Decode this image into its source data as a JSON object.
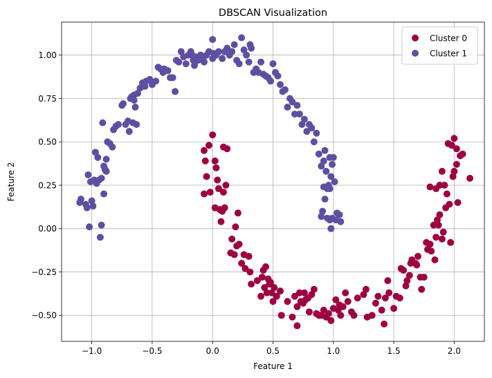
{
  "chart_data": {
    "type": "scatter",
    "title": "DBSCAN Visualization",
    "xlabel": "Feature 1",
    "ylabel": "Feature 2",
    "xlim": [
      -1.25,
      2.25
    ],
    "ylim": [
      -0.65,
      1.19
    ],
    "xticks": [
      -1.0,
      -0.5,
      0.0,
      0.5,
      1.0,
      1.5,
      2.0
    ],
    "xtick_labels": [
      "−1.0",
      "−0.5",
      "0.0",
      "0.5",
      "1.0",
      "1.5",
      "2.0"
    ],
    "yticks": [
      -0.5,
      -0.25,
      0.0,
      0.25,
      0.5,
      0.75,
      1.0
    ],
    "ytick_labels": [
      "−0.50",
      "−0.25",
      "0.00",
      "0.25",
      "0.50",
      "0.75",
      "1.00"
    ],
    "grid": true,
    "legend_position": "top-right",
    "series": [
      {
        "name": "Cluster 0",
        "color": "#9e0142",
        "points": [
          [
            0.0,
            0.54
          ],
          [
            -0.03,
            0.48
          ],
          [
            -0.07,
            0.45
          ],
          [
            -0.06,
            0.39
          ],
          [
            0.02,
            0.39
          ],
          [
            0.03,
            0.35
          ],
          [
            -0.05,
            0.3
          ],
          [
            0.04,
            0.28
          ],
          [
            0.09,
            0.47
          ],
          [
            0.12,
            0.46
          ],
          [
            0.05,
            0.23
          ],
          [
            0.09,
            0.21
          ],
          [
            0.11,
            0.25
          ],
          [
            -0.07,
            0.2
          ],
          [
            -0.02,
            0.21
          ],
          [
            0.02,
            0.12
          ],
          [
            0.06,
            0.11
          ],
          [
            0.08,
            0.1
          ],
          [
            0.1,
            0.12
          ],
          [
            0.07,
            0.04
          ],
          [
            0.21,
            0.09
          ],
          [
            0.19,
            0.01
          ],
          [
            0.16,
            -0.06
          ],
          [
            0.15,
            -0.14
          ],
          [
            0.2,
            -0.1
          ],
          [
            0.22,
            -0.09
          ],
          [
            0.18,
            -0.15
          ],
          [
            0.26,
            -0.15
          ],
          [
            0.24,
            -0.2
          ],
          [
            0.3,
            -0.16
          ],
          [
            0.27,
            -0.23
          ],
          [
            0.31,
            -0.25
          ],
          [
            0.32,
            -0.32
          ],
          [
            0.37,
            -0.3
          ],
          [
            0.41,
            -0.28
          ],
          [
            0.42,
            -0.24
          ],
          [
            0.44,
            -0.22
          ],
          [
            0.46,
            -0.29
          ],
          [
            0.43,
            -0.34
          ],
          [
            0.47,
            -0.32
          ],
          [
            0.4,
            -0.39
          ],
          [
            0.45,
            -0.37
          ],
          [
            0.49,
            -0.37
          ],
          [
            0.51,
            -0.34
          ],
          [
            0.48,
            -0.31
          ],
          [
            0.5,
            -0.42
          ],
          [
            0.53,
            -0.39
          ],
          [
            0.56,
            -0.36
          ],
          [
            0.57,
            -0.5
          ],
          [
            0.62,
            -0.42
          ],
          [
            0.66,
            -0.51
          ],
          [
            0.68,
            -0.39
          ],
          [
            0.7,
            -0.45
          ],
          [
            0.72,
            -0.37
          ],
          [
            0.73,
            -0.42
          ],
          [
            0.75,
            -0.43
          ],
          [
            0.76,
            -0.37
          ],
          [
            0.77,
            -0.41
          ],
          [
            0.79,
            -0.4
          ],
          [
            0.8,
            -0.48
          ],
          [
            0.82,
            -0.38
          ],
          [
            0.84,
            -0.35
          ],
          [
            0.7,
            -0.56
          ],
          [
            0.86,
            -0.49
          ],
          [
            0.88,
            -0.5
          ],
          [
            0.9,
            -0.5
          ],
          [
            0.92,
            -0.47
          ],
          [
            0.94,
            -0.51
          ],
          [
            0.96,
            -0.49
          ],
          [
            0.98,
            -0.53
          ],
          [
            1.0,
            -0.46
          ],
          [
            1.02,
            -0.41
          ],
          [
            1.04,
            -0.47
          ],
          [
            1.05,
            -0.44
          ],
          [
            1.06,
            -0.5
          ],
          [
            1.08,
            -0.45
          ],
          [
            1.1,
            -0.37
          ],
          [
            1.12,
            -0.42
          ],
          [
            1.15,
            -0.48
          ],
          [
            1.17,
            -0.5
          ],
          [
            1.2,
            -0.4
          ],
          [
            1.25,
            -0.38
          ],
          [
            1.27,
            -0.35
          ],
          [
            1.28,
            -0.51
          ],
          [
            1.32,
            -0.5
          ],
          [
            1.35,
            -0.43
          ],
          [
            1.37,
            -0.39
          ],
          [
            1.4,
            -0.47
          ],
          [
            1.42,
            -0.55
          ],
          [
            1.43,
            -0.4
          ],
          [
            1.45,
            -0.3
          ],
          [
            1.46,
            -0.37
          ],
          [
            1.5,
            -0.46
          ],
          [
            1.52,
            -0.39
          ],
          [
            1.55,
            -0.4
          ],
          [
            1.56,
            -0.23
          ],
          [
            1.58,
            -0.24
          ],
          [
            1.61,
            -0.3
          ],
          [
            1.63,
            -0.27
          ],
          [
            1.65,
            -0.18
          ],
          [
            1.68,
            -0.2
          ],
          [
            1.7,
            -0.16
          ],
          [
            1.72,
            -0.28
          ],
          [
            1.73,
            -0.35
          ],
          [
            1.75,
            -0.28
          ],
          [
            1.77,
            -0.08
          ],
          [
            1.78,
            -0.12
          ],
          [
            1.8,
            -0.09
          ],
          [
            1.81,
            -0.13
          ],
          [
            1.83,
            0.02
          ],
          [
            1.84,
            -0.18
          ],
          [
            1.85,
            -0.05
          ],
          [
            1.86,
            0.05
          ],
          [
            1.88,
            0.08
          ],
          [
            1.9,
            -0.06
          ],
          [
            1.91,
            -0.02
          ],
          [
            1.93,
            0.12
          ],
          [
            1.94,
            0.2
          ],
          [
            1.96,
            0.14
          ],
          [
            1.97,
            -0.08
          ],
          [
            1.99,
            0.3
          ],
          [
            2.0,
            0.33
          ],
          [
            2.02,
            0.37
          ],
          [
            2.05,
            0.42
          ],
          [
            2.07,
            0.43
          ],
          [
            2.13,
            0.29
          ],
          [
            1.95,
            0.49
          ],
          [
            1.98,
            0.48
          ],
          [
            2.0,
            0.52
          ],
          [
            2.02,
            0.46
          ],
          [
            1.9,
            0.33
          ],
          [
            1.88,
            0.25
          ],
          [
            1.85,
            0.23
          ],
          [
            1.8,
            0.24
          ],
          [
            1.92,
            0.25
          ],
          [
            1.6,
            -0.33
          ],
          [
            1.64,
            -0.2
          ],
          [
            1.69,
            -0.21
          ],
          [
            2.03,
            0.15
          ],
          [
            1.87,
            0.02
          ]
        ]
      },
      {
        "name": "Cluster 1",
        "color": "#5e4fa2",
        "points": [
          [
            -1.1,
            0.15
          ],
          [
            -1.09,
            0.17
          ],
          [
            -1.05,
            0.14
          ],
          [
            -1.04,
            0.12
          ],
          [
            -1.03,
            0.31
          ],
          [
            -1.02,
            0.01
          ],
          [
            -1.01,
            0.27
          ],
          [
            -1.0,
            0.16
          ],
          [
            -0.99,
            0.13
          ],
          [
            -0.98,
            0.28
          ],
          [
            -0.97,
            0.44
          ],
          [
            -0.96,
            0.26
          ],
          [
            -0.95,
            0.41
          ],
          [
            -0.94,
            0.28
          ],
          [
            -0.93,
            -0.05
          ],
          [
            -0.92,
            0.29
          ],
          [
            -0.92,
            0.02
          ],
          [
            -0.91,
            0.61
          ],
          [
            -0.9,
            0.36
          ],
          [
            -0.9,
            0.2
          ],
          [
            -0.89,
            0.34
          ],
          [
            -0.88,
            0.4
          ],
          [
            -0.87,
            0.5
          ],
          [
            -0.85,
            0.49
          ],
          [
            -0.83,
            0.47
          ],
          [
            -0.82,
            0.57
          ],
          [
            -0.8,
            0.59
          ],
          [
            -0.78,
            0.6
          ],
          [
            -0.75,
            0.71
          ],
          [
            -0.74,
            0.72
          ],
          [
            -0.72,
            0.6
          ],
          [
            -0.7,
            0.62
          ],
          [
            -0.69,
            0.56
          ],
          [
            -0.68,
            0.75
          ],
          [
            -0.67,
            0.76
          ],
          [
            -0.66,
            0.61
          ],
          [
            -0.65,
            0.74
          ],
          [
            -0.64,
            0.7
          ],
          [
            -0.63,
            0.6
          ],
          [
            -0.62,
            0.78
          ],
          [
            -0.6,
            0.81
          ],
          [
            -0.58,
            0.84
          ],
          [
            -0.56,
            0.82
          ],
          [
            -0.55,
            0.85
          ],
          [
            -0.52,
            0.86
          ],
          [
            -0.5,
            0.83
          ],
          [
            -0.47,
            0.85
          ],
          [
            -0.45,
            0.93
          ],
          [
            -0.43,
            0.92
          ],
          [
            -0.41,
            0.9
          ],
          [
            -0.4,
            0.92
          ],
          [
            -0.37,
            0.91
          ],
          [
            -0.35,
            0.87
          ],
          [
            -0.33,
            0.87
          ],
          [
            -0.3,
            0.97
          ],
          [
            -0.28,
            0.96
          ],
          [
            -0.26,
            1.02
          ],
          [
            -0.24,
            0.99
          ],
          [
            -0.22,
            0.95
          ],
          [
            -0.2,
            1.0
          ],
          [
            -0.18,
            1.02
          ],
          [
            -0.17,
            1.0
          ],
          [
            -0.15,
            0.94
          ],
          [
            -0.14,
            0.99
          ],
          [
            -0.12,
            0.97
          ],
          [
            -0.1,
            1.0
          ],
          [
            -0.08,
            0.98
          ],
          [
            -0.07,
            0.96
          ],
          [
            -0.05,
            1.0
          ],
          [
            -0.03,
            1.02
          ],
          [
            0.0,
            0.98
          ],
          [
            0.01,
            1.01
          ],
          [
            0.03,
            1.0
          ],
          [
            0.05,
            1.02
          ],
          [
            0.08,
            0.98
          ],
          [
            0.1,
            1.02
          ],
          [
            0.12,
            1.04
          ],
          [
            0.14,
            1.0
          ],
          [
            0.16,
            1.02
          ],
          [
            0.18,
            1.06
          ],
          [
            0.2,
            0.97
          ],
          [
            0.22,
            0.95
          ],
          [
            0.24,
            1.1
          ],
          [
            0.26,
            1.03
          ],
          [
            0.28,
            1.0
          ],
          [
            0.3,
            0.96
          ],
          [
            0.32,
            1.04
          ],
          [
            0.34,
            0.9
          ],
          [
            0.36,
            0.92
          ],
          [
            0.38,
            0.9
          ],
          [
            0.4,
            0.96
          ],
          [
            0.42,
            0.89
          ],
          [
            0.44,
            0.88
          ],
          [
            0.46,
            0.87
          ],
          [
            0.48,
            0.85
          ],
          [
            0.5,
            0.95
          ],
          [
            0.52,
            0.9
          ],
          [
            0.54,
            0.88
          ],
          [
            0.56,
            0.83
          ],
          [
            0.58,
            0.79
          ],
          [
            0.6,
            0.8
          ],
          [
            0.62,
            0.7
          ],
          [
            0.64,
            0.75
          ],
          [
            0.66,
            0.73
          ],
          [
            0.68,
            0.66
          ],
          [
            0.7,
            0.71
          ],
          [
            0.72,
            0.66
          ],
          [
            0.74,
            0.6
          ],
          [
            0.76,
            0.63
          ],
          [
            0.78,
            0.56
          ],
          [
            0.8,
            0.6
          ],
          [
            0.82,
            0.58
          ],
          [
            0.84,
            0.5
          ],
          [
            0.86,
            0.55
          ],
          [
            0.88,
            0.43
          ],
          [
            0.9,
            0.36
          ],
          [
            0.92,
            0.39
          ],
          [
            0.93,
            0.45
          ],
          [
            0.94,
            0.33
          ],
          [
            0.95,
            0.23
          ],
          [
            0.96,
            0.25
          ],
          [
            0.97,
            0.41
          ],
          [
            0.98,
            0.3
          ],
          [
            0.99,
            0.37
          ],
          [
            1.0,
            0.41
          ],
          [
            1.01,
            0.27
          ],
          [
            0.93,
            0.17
          ],
          [
            0.91,
            0.1
          ],
          [
            0.9,
            0.07
          ],
          [
            0.95,
            0.06
          ],
          [
            0.97,
            0.05
          ],
          [
            0.99,
            0.06
          ],
          [
            1.02,
            0.05
          ],
          [
            1.03,
            0.09
          ],
          [
            1.05,
            0.08
          ],
          [
            1.06,
            0.04
          ],
          [
            0.98,
            0.0
          ],
          [
            0.92,
            0.24
          ],
          [
            0.97,
            0.23
          ],
          [
            -0.16,
            0.97
          ],
          [
            0.0,
            1.09
          ],
          [
            0.31,
            1.06
          ],
          [
            -0.31,
            0.79
          ],
          [
            -0.65,
            0.77
          ],
          [
            -0.88,
            0.33
          ]
        ]
      }
    ]
  }
}
